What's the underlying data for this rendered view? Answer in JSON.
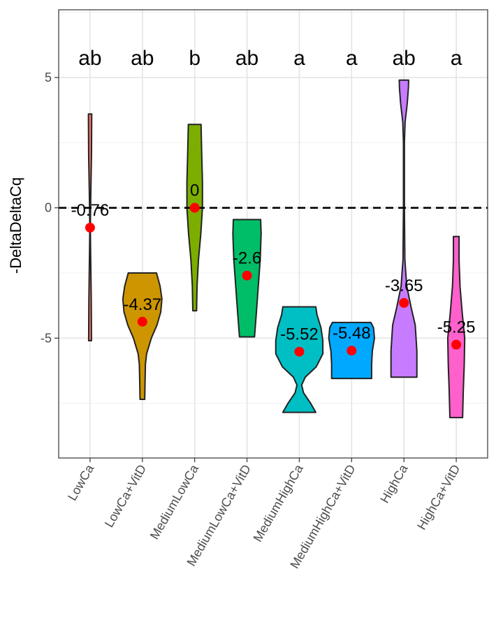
{
  "chart_data": {
    "type": "violin",
    "title": "",
    "xlabel": "",
    "ylabel": "-DeltaDeltaCq",
    "ylim": [
      -9.6,
      7.6
    ],
    "yticks": [
      -5,
      0,
      5
    ],
    "reference_line": 0,
    "grid": true,
    "categories": [
      "LowCa",
      "LowCa+VitD",
      "MediumLowCa",
      "MediumLowCa+VitD",
      "MediumHighCa",
      "MediumHighCa+VitD",
      "HighCa",
      "HighCa+VitD"
    ],
    "series": [
      {
        "category": "LowCa",
        "fill": "#F8766D",
        "mean": -0.76,
        "mean_label": "-0.76",
        "sig": "ab",
        "profile": [
          [
            -5.1,
            0.06
          ],
          [
            -3.5,
            0.05
          ],
          [
            -1.5,
            0.02
          ],
          [
            -0.76,
            0.01
          ],
          [
            0.5,
            0.03
          ],
          [
            2.0,
            0.06
          ],
          [
            3.6,
            0.07
          ]
        ]
      },
      {
        "category": "LowCa+VitD",
        "fill": "#CD9600",
        "mean": -4.37,
        "mean_label": "-4.37",
        "sig": "ab",
        "profile": [
          [
            -7.35,
            0.1
          ],
          [
            -6.8,
            0.11
          ],
          [
            -6.0,
            0.13
          ],
          [
            -5.6,
            0.18
          ],
          [
            -5.0,
            0.38
          ],
          [
            -4.5,
            0.62
          ],
          [
            -4.0,
            0.78
          ],
          [
            -3.5,
            0.83
          ],
          [
            -3.0,
            0.75
          ],
          [
            -2.5,
            0.6
          ]
        ]
      },
      {
        "category": "MediumLowCa",
        "fill": "#7CAE00",
        "mean": 0,
        "mean_label": "0",
        "sig": "b",
        "profile": [
          [
            -3.95,
            0.08
          ],
          [
            -3.0,
            0.1
          ],
          [
            -2.0,
            0.16
          ],
          [
            -1.0,
            0.26
          ],
          [
            0.0,
            0.33
          ],
          [
            1.0,
            0.33
          ],
          [
            2.0,
            0.3
          ],
          [
            3.2,
            0.27
          ]
        ]
      },
      {
        "category": "MediumLowCa+VitD",
        "fill": "#00BE67",
        "mean": -2.6,
        "mean_label": "-2.6",
        "sig": "ab",
        "profile": [
          [
            -4.95,
            0.32
          ],
          [
            -4.0,
            0.4
          ],
          [
            -3.0,
            0.48
          ],
          [
            -2.0,
            0.56
          ],
          [
            -1.0,
            0.6
          ],
          [
            -0.45,
            0.58
          ]
        ]
      },
      {
        "category": "MediumHighCa",
        "fill": "#00BFC4",
        "mean": -5.52,
        "mean_label": "-5.52",
        "sig": "a",
        "profile": [
          [
            -7.85,
            0.7
          ],
          [
            -7.5,
            0.48
          ],
          [
            -7.1,
            0.18
          ],
          [
            -6.8,
            0.1
          ],
          [
            -6.5,
            0.25
          ],
          [
            -6.1,
            0.72
          ],
          [
            -5.6,
            1.0
          ],
          [
            -5.1,
            1.0
          ],
          [
            -4.6,
            0.92
          ],
          [
            -4.1,
            0.75
          ],
          [
            -3.8,
            0.7
          ]
        ]
      },
      {
        "category": "MediumHighCa+VitD",
        "fill": "#00A9FF",
        "mean": -5.48,
        "mean_label": "-5.48",
        "sig": "a",
        "profile": [
          [
            -6.55,
            0.85
          ],
          [
            -6.0,
            0.85
          ],
          [
            -5.5,
            0.88
          ],
          [
            -5.0,
            0.97
          ],
          [
            -4.6,
            0.93
          ],
          [
            -4.4,
            0.82
          ]
        ]
      },
      {
        "category": "HighCa",
        "fill": "#C77CFF",
        "mean": -3.65,
        "mean_label": "-3.65",
        "sig": "ab",
        "profile": [
          [
            -6.5,
            0.55
          ],
          [
            -5.5,
            0.55
          ],
          [
            -4.5,
            0.48
          ],
          [
            -3.8,
            0.3
          ],
          [
            -3.0,
            0.12
          ],
          [
            -2.0,
            0.04
          ],
          [
            0.0,
            0.02
          ],
          [
            2.5,
            0.02
          ],
          [
            3.3,
            0.05
          ],
          [
            4.0,
            0.14
          ],
          [
            4.6,
            0.19
          ],
          [
            4.9,
            0.2
          ]
        ]
      },
      {
        "category": "HighCa+VitD",
        "fill": "#FF61CC",
        "mean": -5.25,
        "mean_label": "-5.25",
        "sig": "a",
        "profile": [
          [
            -8.05,
            0.27
          ],
          [
            -7.0,
            0.3
          ],
          [
            -6.0,
            0.34
          ],
          [
            -5.0,
            0.36
          ],
          [
            -4.0,
            0.25
          ],
          [
            -3.0,
            0.16
          ],
          [
            -2.0,
            0.12
          ],
          [
            -1.1,
            0.12
          ]
        ]
      }
    ],
    "mean_point_color": "#FF0000",
    "reference_line_style": "dashed"
  }
}
